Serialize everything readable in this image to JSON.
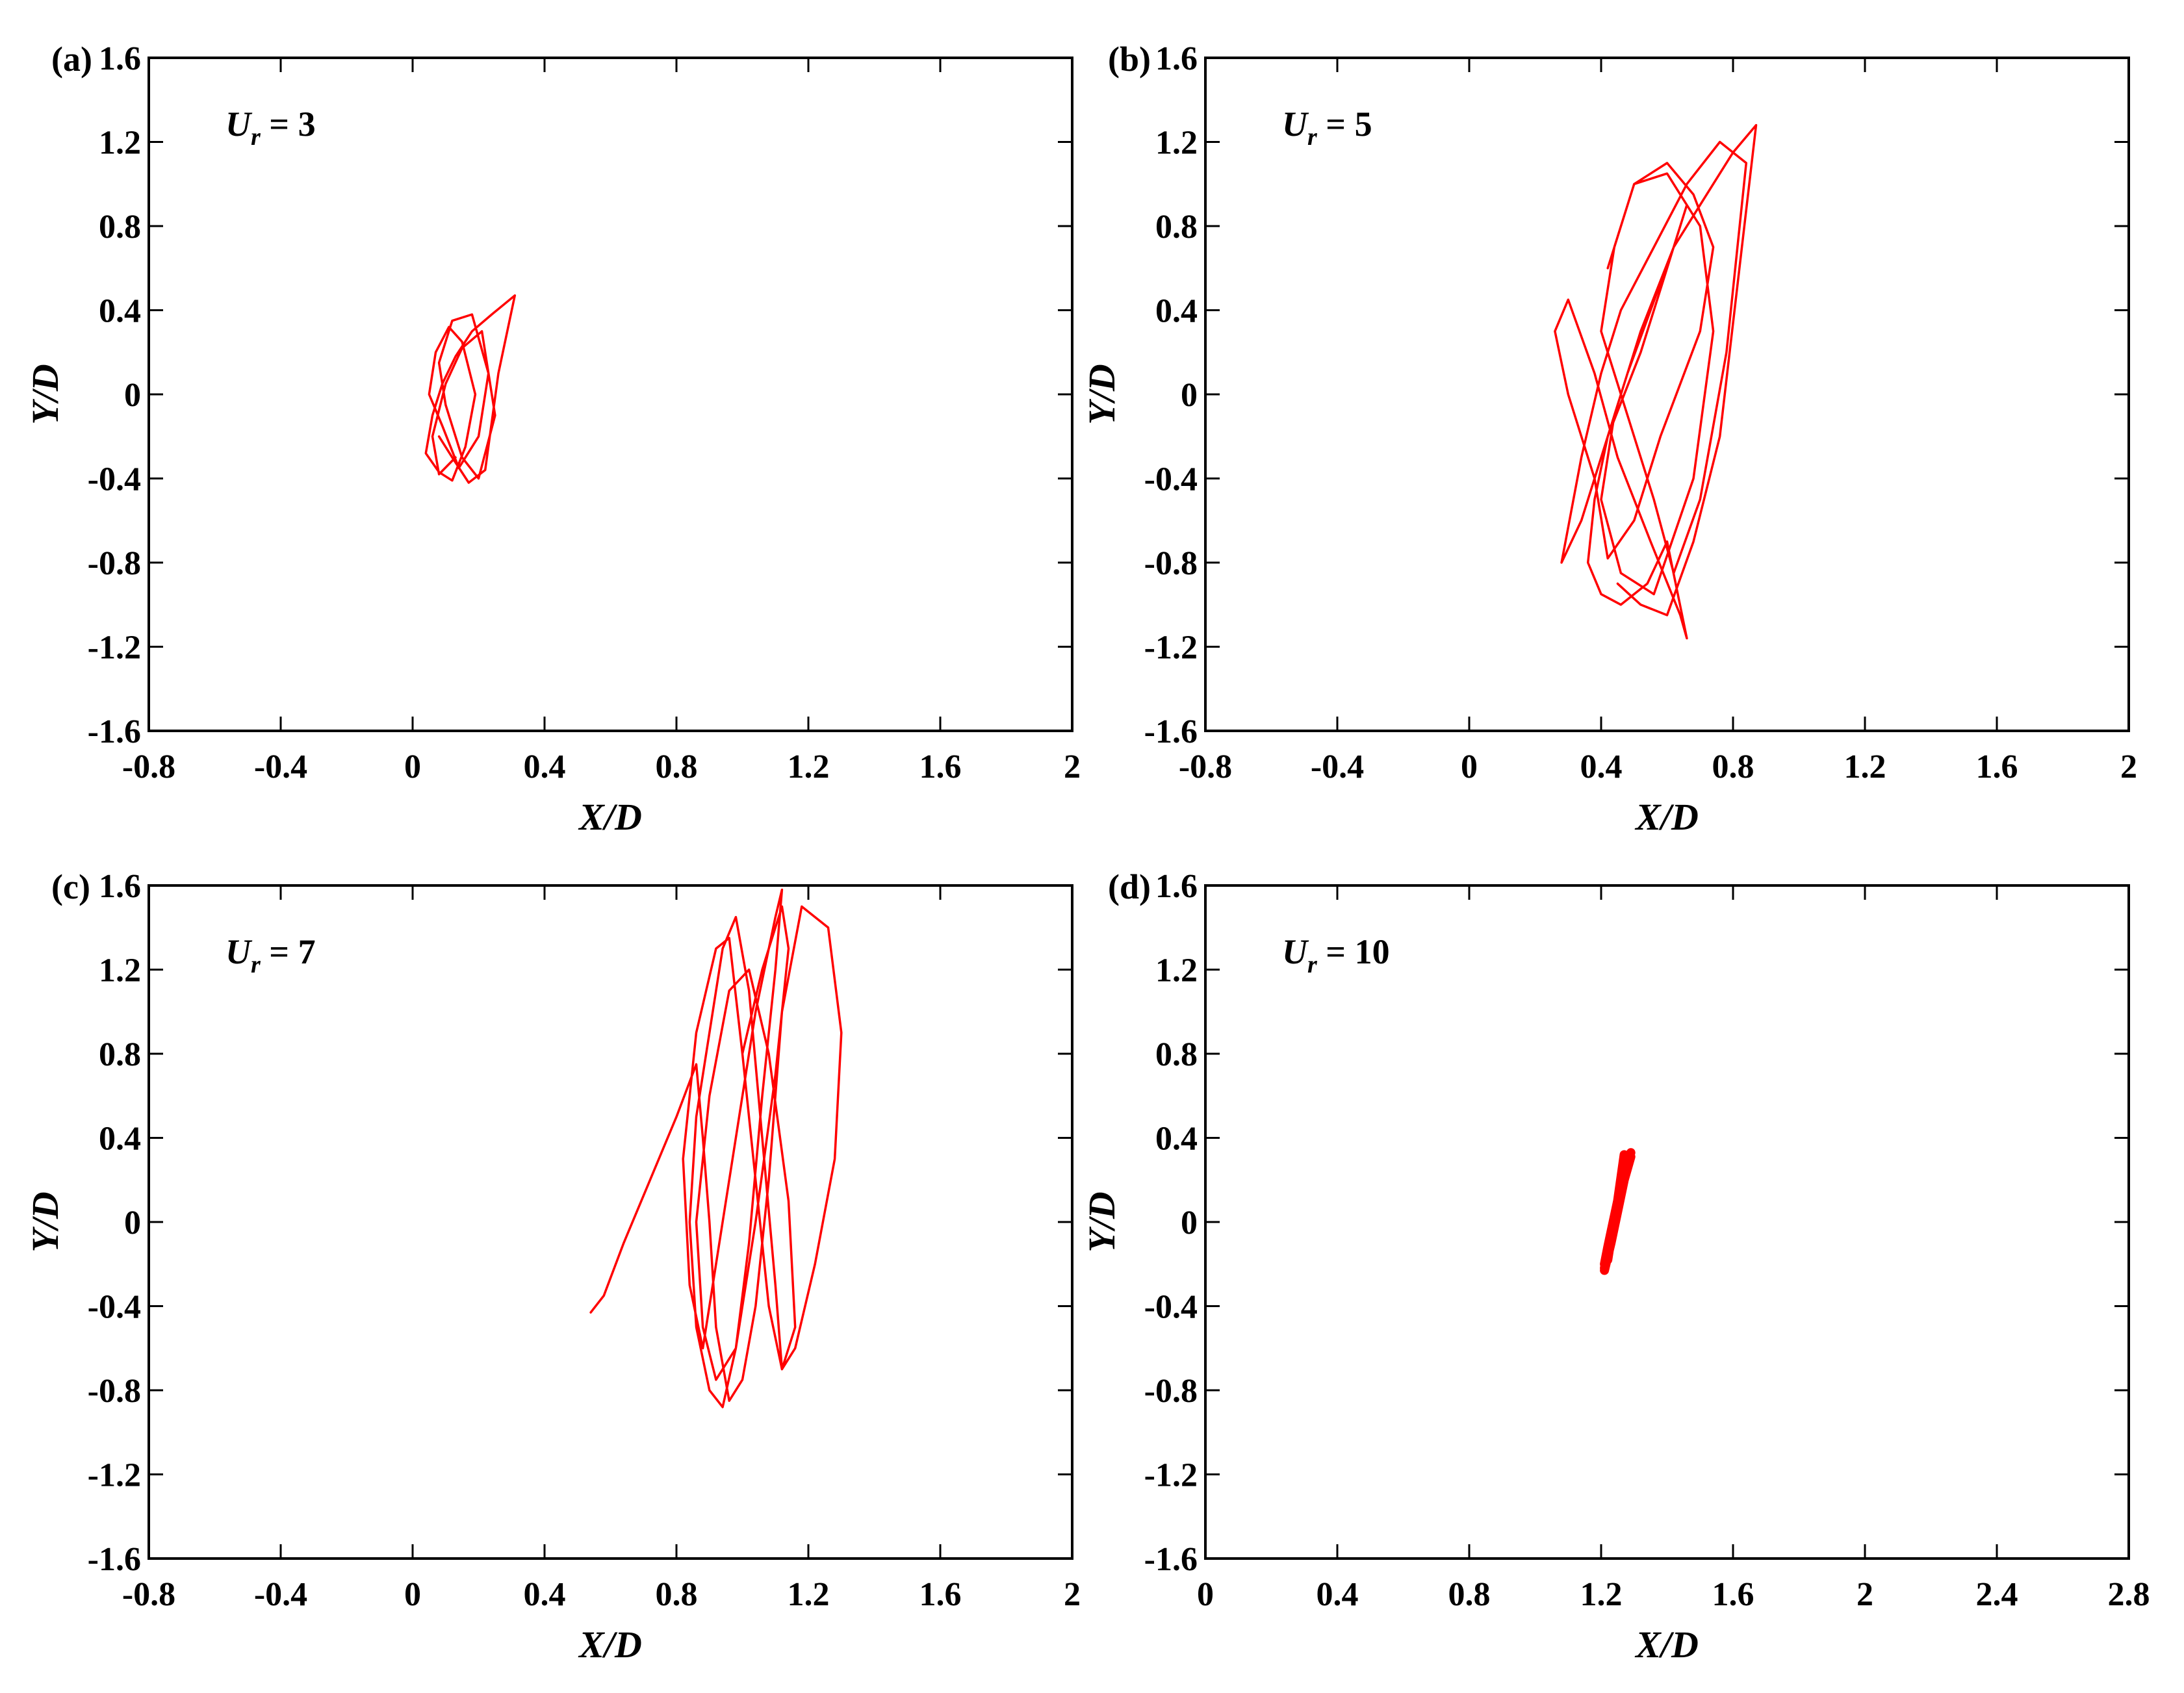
{
  "colors": {
    "trajectory": "#ff0000",
    "axes": "#000000",
    "background": "#ffffff"
  },
  "chart_data": [
    {
      "type": "line",
      "panel": "(a)",
      "annotation": {
        "main": "U",
        "sub": "r",
        "rest": " = 3"
      },
      "xlabel": "X/D",
      "ylabel": "Y/D",
      "xlim": [
        -0.8,
        2.0
      ],
      "ylim": [
        -1.6,
        1.6
      ],
      "xticks": [
        "-0.8",
        "-0.4",
        "0",
        "0.4",
        "0.8",
        "1.2",
        "1.6",
        "2"
      ],
      "yticks": [
        "-1.6",
        "-1.2",
        "-0.8",
        "-0.4",
        "0",
        "0.4",
        "0.8",
        "1.2",
        "1.6"
      ],
      "trajectory": {
        "x_range": [
          0.03,
          0.31
        ],
        "y_range": [
          -0.43,
          0.47
        ],
        "description": "tight figure-eight cluster near X/D = 0.12",
        "x": [
          0.08,
          0.12,
          0.17,
          0.22,
          0.26,
          0.31,
          0.24,
          0.18,
          0.13,
          0.09,
          0.06,
          0.04,
          0.08,
          0.12,
          0.16,
          0.19,
          0.15,
          0.11,
          0.07,
          0.05,
          0.09,
          0.14,
          0.2,
          0.23,
          0.18,
          0.12,
          0.08,
          0.1,
          0.15,
          0.2,
          0.25,
          0.21,
          0.15,
          0.1,
          0.06,
          0.08,
          0.13
        ],
        "y": [
          -0.2,
          -0.3,
          -0.42,
          -0.36,
          0.1,
          0.47,
          0.38,
          0.3,
          0.18,
          0.05,
          -0.1,
          -0.28,
          -0.37,
          -0.41,
          -0.25,
          0.0,
          0.25,
          0.32,
          0.2,
          0.0,
          -0.15,
          -0.35,
          -0.2,
          0.1,
          0.38,
          0.35,
          0.15,
          -0.05,
          -0.3,
          -0.4,
          -0.1,
          0.3,
          0.22,
          0.05,
          -0.2,
          -0.38,
          -0.3
        ]
      }
    },
    {
      "type": "line",
      "panel": "(b)",
      "annotation": {
        "main": "U",
        "sub": "r",
        "rest": " = 5"
      },
      "xlabel": "X/D",
      "ylabel": "Y/D",
      "xlim": [
        -0.8,
        2.0
      ],
      "ylim": [
        -1.6,
        1.6
      ],
      "xticks": [
        "-0.8",
        "-0.4",
        "0",
        "0.4",
        "0.8",
        "1.2",
        "1.6",
        "2"
      ],
      "yticks": [
        "-1.6",
        "-1.2",
        "-0.8",
        "-0.4",
        "0",
        "0.4",
        "0.8",
        "1.2",
        "1.6"
      ],
      "trajectory": {
        "x_range": [
          0.24,
          0.87
        ],
        "y_range": [
          -1.16,
          1.28
        ],
        "description": "wide chaotic cluster centred near X/D = 0.5",
        "x": [
          0.45,
          0.52,
          0.6,
          0.68,
          0.76,
          0.87,
          0.8,
          0.72,
          0.62,
          0.55,
          0.48,
          0.42,
          0.38,
          0.36,
          0.4,
          0.46,
          0.54,
          0.6,
          0.66,
          0.64,
          0.55,
          0.45,
          0.38,
          0.3,
          0.26,
          0.3,
          0.38,
          0.42,
          0.5,
          0.58,
          0.7,
          0.74,
          0.68,
          0.6,
          0.5,
          0.44,
          0.4,
          0.48,
          0.56,
          0.62,
          0.7,
          0.78,
          0.84,
          0.76,
          0.66,
          0.56,
          0.46,
          0.4,
          0.34,
          0.28,
          0.34,
          0.42,
          0.52,
          0.6,
          0.66,
          0.62,
          0.52,
          0.44,
          0.4,
          0.46,
          0.56,
          0.68,
          0.74,
          0.7,
          0.6,
          0.5,
          0.42
        ],
        "y": [
          -0.9,
          -1.0,
          -1.05,
          -0.7,
          -0.2,
          1.28,
          1.15,
          0.95,
          0.7,
          0.4,
          0.1,
          -0.2,
          -0.5,
          -0.8,
          -0.95,
          -1.0,
          -0.9,
          -0.7,
          -1.16,
          -1.05,
          -0.7,
          -0.3,
          0.1,
          0.45,
          0.3,
          0.0,
          -0.4,
          -0.78,
          -0.6,
          -0.2,
          0.3,
          0.7,
          0.95,
          1.1,
          1.0,
          0.7,
          0.3,
          -0.1,
          -0.5,
          -0.85,
          -0.5,
          0.2,
          1.1,
          1.2,
          1.0,
          0.7,
          0.4,
          0.1,
          -0.3,
          -0.8,
          -0.6,
          -0.2,
          0.2,
          0.6,
          0.9,
          0.7,
          0.3,
          -0.1,
          -0.5,
          -0.85,
          -0.95,
          -0.4,
          0.3,
          0.8,
          1.05,
          1.0,
          0.6
        ]
      }
    },
    {
      "type": "line",
      "panel": "(c)",
      "annotation": {
        "main": "U",
        "sub": "r",
        "rest": " = 7"
      },
      "xlabel": "X/D",
      "ylabel": "Y/D",
      "xlim": [
        -0.8,
        2.0
      ],
      "ylim": [
        -1.6,
        1.6
      ],
      "xticks": [
        "-0.8",
        "-0.4",
        "0",
        "0.4",
        "0.8",
        "1.2",
        "1.6",
        "2"
      ],
      "yticks": [
        "-1.6",
        "-1.2",
        "-0.8",
        "-0.4",
        "0",
        "0.4",
        "0.8",
        "1.2",
        "1.6"
      ],
      "trajectory": {
        "x_range": [
          0.53,
          1.32
        ],
        "y_range": [
          -0.88,
          1.58
        ],
        "description": "tall chaotic cluster centred near X/D = 1.0 with a transient tail to X/D = 0.54",
        "x": [
          0.54,
          0.58,
          0.64,
          0.72,
          0.8,
          0.86,
          0.88,
          0.9,
          0.92,
          0.96,
          1.0,
          1.04,
          1.08,
          1.12,
          1.18,
          1.26,
          1.3,
          1.28,
          1.22,
          1.16,
          1.12,
          1.1,
          1.06,
          1.02,
          0.98,
          0.94,
          0.9,
          0.86,
          0.84,
          0.86,
          0.9,
          0.94,
          0.98,
          1.02,
          1.06,
          1.1,
          1.12,
          1.1,
          1.04,
          0.98,
          0.92,
          0.88,
          0.84,
          0.82,
          0.86,
          0.92,
          0.96,
          1.0,
          1.04,
          1.08,
          1.12,
          1.16,
          1.14,
          1.08,
          1.02,
          0.96,
          0.9,
          0.86,
          0.88,
          0.92,
          0.98,
          1.04,
          1.1,
          1.14,
          1.12,
          1.06,
          1.0
        ],
        "y": [
          -0.43,
          -0.35,
          -0.1,
          0.2,
          0.5,
          0.75,
          0.4,
          0.0,
          -0.5,
          -0.85,
          -0.75,
          -0.4,
          0.2,
          1.0,
          1.5,
          1.4,
          0.9,
          0.3,
          -0.2,
          -0.6,
          -0.7,
          -0.3,
          0.4,
          1.1,
          1.45,
          1.3,
          0.9,
          0.5,
          0.0,
          -0.5,
          -0.8,
          -0.88,
          -0.6,
          -0.1,
          0.6,
          1.2,
          1.58,
          1.45,
          1.0,
          0.4,
          -0.2,
          -0.6,
          -0.3,
          0.3,
          0.9,
          1.3,
          1.35,
          0.8,
          0.2,
          -0.4,
          -0.7,
          -0.5,
          0.1,
          0.8,
          1.2,
          1.1,
          0.6,
          0.0,
          -0.5,
          -0.75,
          -0.6,
          0.0,
          0.7,
          1.3,
          1.5,
          1.2,
          0.8
        ]
      }
    },
    {
      "type": "line",
      "panel": "(d)",
      "annotation": {
        "main": "U",
        "sub": "r",
        "rest": " = 10"
      },
      "xlabel": "X/D",
      "ylabel": "Y/D",
      "xlim": [
        0.0,
        2.8
      ],
      "ylim": [
        -1.6,
        1.6
      ],
      "xticks": [
        "0",
        "0.4",
        "0.8",
        "1.2",
        "1.6",
        "2",
        "2.4",
        "2.8"
      ],
      "yticks": [
        "-1.6",
        "-1.2",
        "-0.8",
        "-0.4",
        "0",
        "0.4",
        "0.8",
        "1.2",
        "1.6"
      ],
      "trajectory": {
        "x_range": [
          1.21,
          1.29
        ],
        "y_range": [
          -0.23,
          0.33
        ],
        "description": "narrow dense stripe near X/D = 1.25",
        "x": [
          1.21,
          1.23,
          1.25,
          1.27,
          1.29,
          1.28,
          1.26,
          1.24,
          1.22,
          1.21,
          1.23,
          1.26,
          1.28,
          1.27,
          1.25,
          1.22,
          1.21,
          1.24,
          1.27,
          1.29,
          1.27,
          1.24,
          1.22
        ],
        "y": [
          -0.23,
          -0.1,
          0.05,
          0.2,
          0.33,
          0.3,
          0.15,
          0.0,
          -0.15,
          -0.22,
          -0.05,
          0.15,
          0.3,
          0.32,
          0.1,
          -0.12,
          -0.2,
          0.0,
          0.22,
          0.31,
          0.2,
          0.02,
          -0.18
        ]
      }
    }
  ]
}
